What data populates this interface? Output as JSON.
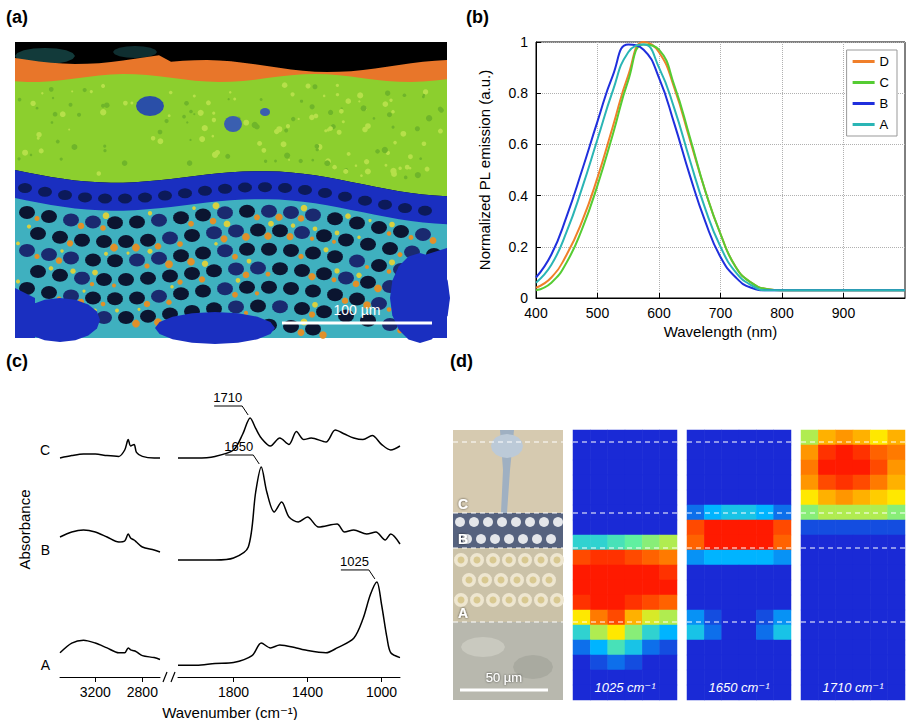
{
  "chart_data": [
    {
      "label": "(a)",
      "type": "image",
      "scale_bar": "100 µm"
    },
    {
      "label": "(b)",
      "type": "line",
      "x_label": "Wavelength (nm)",
      "y_label": "Normalized PL emission (a.u.)",
      "x": [
        400,
        425,
        450,
        475,
        500,
        525,
        550,
        575,
        600,
        625,
        650,
        675,
        700,
        725,
        750,
        775,
        800,
        825,
        850,
        875,
        900,
        925,
        950,
        975,
        1000
      ],
      "series": [
        {
          "name": "D",
          "color": "#f07f2a",
          "values": [
            0.04,
            0.08,
            0.17,
            0.3,
            0.47,
            0.67,
            0.87,
            1.0,
            0.96,
            0.82,
            0.62,
            0.42,
            0.25,
            0.12,
            0.06,
            0.035,
            0.03,
            0.03,
            0.03,
            0.03,
            0.03,
            0.03,
            0.03,
            0.03,
            0.03
          ]
        },
        {
          "name": "C",
          "color": "#55cc33",
          "values": [
            0.03,
            0.06,
            0.14,
            0.27,
            0.44,
            0.64,
            0.85,
            0.99,
            0.97,
            0.83,
            0.63,
            0.42,
            0.25,
            0.12,
            0.06,
            0.035,
            0.03,
            0.03,
            0.03,
            0.03,
            0.03,
            0.03,
            0.03,
            0.03,
            0.03
          ]
        },
        {
          "name": "B",
          "color": "#1f2fdd",
          "values": [
            0.08,
            0.17,
            0.32,
            0.5,
            0.69,
            0.87,
            0.99,
            0.97,
            0.86,
            0.68,
            0.48,
            0.3,
            0.16,
            0.08,
            0.04,
            0.03,
            0.03,
            0.03,
            0.03,
            0.03,
            0.03,
            0.03,
            0.03,
            0.03,
            0.03
          ]
        },
        {
          "name": "A",
          "color": "#2ab5b5",
          "values": [
            0.06,
            0.13,
            0.26,
            0.43,
            0.62,
            0.81,
            0.96,
            0.99,
            0.9,
            0.74,
            0.54,
            0.35,
            0.2,
            0.1,
            0.05,
            0.03,
            0.03,
            0.03,
            0.03,
            0.03,
            0.03,
            0.03,
            0.03,
            0.03,
            0.03
          ]
        }
      ],
      "xlim": [
        400,
        1000
      ],
      "xticks": [
        400,
        500,
        600,
        700,
        800,
        900
      ],
      "ylim": [
        0,
        1
      ],
      "yticks": [
        0,
        0.2,
        0.4,
        0.6,
        0.8,
        1
      ],
      "grid": true,
      "legend": "top-right"
    },
    {
      "label": "(c)",
      "type": "line",
      "x_label": "Wavenumber (cm⁻¹)",
      "y_label": "Absorbance",
      "segments": [
        {
          "xlim": [
            3500,
            2650
          ],
          "xticks": [
            3200,
            2800
          ]
        },
        {
          "xlim": [
            2100,
            900
          ],
          "xticks": [
            1800,
            1400,
            1000
          ]
        }
      ],
      "ylim": [
        0,
        1
      ],
      "tick_labels": "x",
      "series": [
        {
          "name": "C",
          "color": "#000000",
          "segments": [
            {
              "x": [
                3500,
                3400,
                3300,
                3200,
                3100,
                3000,
                2950,
                2920,
                2900,
                2870,
                2850,
                2800,
                2700,
                2650
              ],
              "values": [
                0.05,
                0.08,
                0.1,
                0.1,
                0.08,
                0.07,
                0.15,
                0.28,
                0.2,
                0.22,
                0.12,
                0.07,
                0.05,
                0.05
              ]
            },
            {
              "x": [
                2100,
                2000,
                1900,
                1800,
                1750,
                1710,
                1680,
                1650,
                1600,
                1550,
                1500,
                1460,
                1420,
                1380,
                1300,
                1250,
                1200,
                1150,
                1100,
                1050,
                1000,
                950,
                900
              ],
              "values": [
                0.05,
                0.05,
                0.07,
                0.15,
                0.35,
                0.55,
                0.42,
                0.3,
                0.2,
                0.3,
                0.22,
                0.38,
                0.28,
                0.3,
                0.25,
                0.4,
                0.35,
                0.3,
                0.28,
                0.33,
                0.22,
                0.15,
                0.2
              ]
            }
          ]
        },
        {
          "name": "B",
          "color": "#000000",
          "segments": [
            {
              "x": [
                3500,
                3400,
                3300,
                3200,
                3100,
                3000,
                2950,
                2920,
                2900,
                2870,
                2850,
                2800,
                2700,
                2650
              ],
              "values": [
                0.25,
                0.3,
                0.32,
                0.3,
                0.25,
                0.2,
                0.21,
                0.28,
                0.24,
                0.22,
                0.2,
                0.15,
                0.12,
                0.1
              ]
            },
            {
              "x": [
                2100,
                2000,
                1900,
                1800,
                1720,
                1680,
                1650,
                1620,
                1580,
                1540,
                1500,
                1450,
                1400,
                1340,
                1240,
                1200,
                1150,
                1080,
                1030,
                980,
                950,
                900
              ],
              "values": [
                0.02,
                0.02,
                0.02,
                0.04,
                0.15,
                0.7,
                0.95,
                0.7,
                0.5,
                0.6,
                0.45,
                0.4,
                0.45,
                0.35,
                0.38,
                0.3,
                0.32,
                0.28,
                0.3,
                0.22,
                0.28,
                0.18
              ]
            }
          ]
        },
        {
          "name": "A",
          "color": "#000000",
          "segments": [
            {
              "x": [
                3500,
                3400,
                3300,
                3200,
                3100,
                3000,
                2950,
                2920,
                2900,
                2870,
                2850,
                2800,
                2700,
                2650
              ],
              "values": [
                0.25,
                0.35,
                0.38,
                0.35,
                0.3,
                0.25,
                0.25,
                0.3,
                0.28,
                0.27,
                0.26,
                0.22,
                0.2,
                0.18
              ]
            },
            {
              "x": [
                2100,
                2000,
                1900,
                1800,
                1700,
                1650,
                1600,
                1550,
                1460,
                1420,
                1300,
                1240,
                1150,
                1100,
                1060,
                1025,
                1000,
                970,
                950,
                900
              ],
              "values": [
                0.12,
                0.12,
                0.14,
                0.15,
                0.22,
                0.35,
                0.3,
                0.33,
                0.3,
                0.28,
                0.25,
                0.3,
                0.4,
                0.6,
                0.85,
                0.98,
                0.75,
                0.4,
                0.25,
                0.2
              ]
            }
          ]
        }
      ],
      "annotations": [
        {
          "text": "1710",
          "series": "C",
          "x": 1710
        },
        {
          "text": "1650",
          "series": "B",
          "x": 1650
        },
        {
          "text": "1025",
          "series": "A",
          "x": 1025
        }
      ]
    },
    {
      "label": "(d)",
      "type": "heatmap",
      "scale_bar": "50 µm",
      "layers": [
        "C",
        "B",
        "A"
      ],
      "color_range": [
        0,
        1
      ],
      "tick_labels": false,
      "maps": [
        {
          "title": "1025 cm⁻¹",
          "cells": [
            [
              0,
              0,
              0,
              0,
              0,
              0
            ],
            [
              0,
              0,
              0,
              0,
              0,
              0
            ],
            [
              0,
              0,
              0,
              0,
              0,
              0
            ],
            [
              0,
              0,
              0,
              0,
              0,
              0
            ],
            [
              0,
              0,
              0,
              0,
              0,
              0
            ],
            [
              0,
              0,
              0,
              0,
              0,
              0
            ],
            [
              0,
              0,
              0,
              0,
              0,
              0
            ],
            [
              0.3,
              0.3,
              0.35,
              0.4,
              0.45,
              0.5
            ],
            [
              0.9,
              0.95,
              0.95,
              0.9,
              0.85,
              0.8
            ],
            [
              1,
              1,
              1,
              1,
              1,
              0.95
            ],
            [
              1,
              1,
              1,
              1,
              1,
              1
            ],
            [
              0.95,
              1,
              1,
              0.95,
              0.9,
              0.85
            ],
            [
              0.6,
              0.8,
              0.9,
              0.7,
              0.55,
              0.5
            ],
            [
              0.3,
              0.5,
              0.6,
              0.45,
              0.3,
              0.2
            ],
            [
              0.1,
              0.2,
              0.35,
              0.25,
              0.1,
              0.05
            ],
            [
              0,
              0.05,
              0.1,
              0.05,
              0,
              0
            ],
            [
              0,
              0,
              0,
              0,
              0,
              0
            ],
            [
              0,
              0,
              0,
              0,
              0,
              0
            ]
          ]
        },
        {
          "title": "1650 cm⁻¹",
          "cells": [
            [
              0,
              0,
              0,
              0,
              0,
              0
            ],
            [
              0,
              0,
              0,
              0,
              0,
              0
            ],
            [
              0,
              0,
              0,
              0,
              0,
              0
            ],
            [
              0,
              0,
              0,
              0,
              0,
              0
            ],
            [
              0,
              0,
              0,
              0,
              0,
              0
            ],
            [
              0.1,
              0.2,
              0.25,
              0.25,
              0.2,
              0.1
            ],
            [
              0.9,
              1,
              1,
              1,
              1,
              0.9
            ],
            [
              0.85,
              1,
              1,
              1,
              1,
              0.85
            ],
            [
              0.15,
              0.2,
              0.2,
              0.2,
              0.2,
              0.15
            ],
            [
              0,
              0,
              0,
              0,
              0,
              0
            ],
            [
              0,
              0,
              0,
              0,
              0,
              0
            ],
            [
              0,
              0,
              0,
              0,
              0,
              0
            ],
            [
              0.15,
              0.05,
              0,
              0,
              0.05,
              0.15
            ],
            [
              0.25,
              0.1,
              0,
              0,
              0.1,
              0.25
            ],
            [
              0,
              0,
              0,
              0,
              0,
              0
            ],
            [
              0,
              0,
              0,
              0,
              0,
              0
            ],
            [
              0,
              0,
              0,
              0,
              0,
              0
            ],
            [
              0,
              0,
              0,
              0,
              0,
              0
            ]
          ]
        },
        {
          "title": "1710 cm⁻¹",
          "cells": [
            [
              0.5,
              0.7,
              0.75,
              0.7,
              0.6,
              0.7
            ],
            [
              0.75,
              0.95,
              1,
              0.95,
              0.85,
              0.8
            ],
            [
              0.8,
              1,
              1,
              1,
              0.9,
              0.75
            ],
            [
              0.75,
              0.9,
              0.95,
              0.9,
              0.8,
              0.7
            ],
            [
              0.6,
              0.7,
              0.75,
              0.7,
              0.65,
              0.6
            ],
            [
              0.45,
              0.5,
              0.5,
              0.5,
              0.5,
              0.45
            ],
            [
              0.05,
              0.05,
              0.05,
              0.05,
              0.05,
              0.05
            ],
            [
              0,
              0,
              0,
              0,
              0,
              0
            ],
            [
              0,
              0,
              0,
              0,
              0,
              0
            ],
            [
              0,
              0,
              0,
              0,
              0,
              0
            ],
            [
              0,
              0,
              0,
              0,
              0,
              0
            ],
            [
              0,
              0,
              0,
              0,
              0,
              0
            ],
            [
              0,
              0,
              0,
              0,
              0,
              0
            ],
            [
              0,
              0,
              0,
              0,
              0,
              0
            ],
            [
              0,
              0,
              0,
              0,
              0,
              0
            ],
            [
              0,
              0,
              0,
              0,
              0,
              0
            ],
            [
              0,
              0,
              0,
              0,
              0,
              0
            ],
            [
              0,
              0,
              0,
              0,
              0,
              0
            ]
          ]
        }
      ]
    }
  ]
}
